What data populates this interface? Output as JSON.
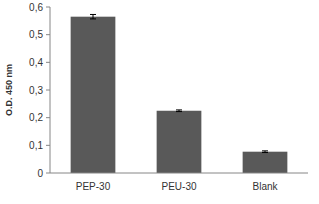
{
  "chart_data": {
    "type": "bar",
    "y_label": "O.D. 450 nm",
    "categories": [
      "PEP-30",
      "PEU-30",
      "Blank"
    ],
    "values": [
      0.565,
      0.225,
      0.077
    ],
    "errors": [
      0.008,
      0.003,
      0.003
    ],
    "color": "#595959",
    "ylim": [
      0,
      0.6
    ],
    "yticks": [
      0,
      {
        "value": 0.1,
        "label": "0,1"
      },
      {
        "value": 0.2,
        "label": "0,2"
      },
      {
        "value": 0.3,
        "label": "0,3"
      },
      {
        "value": 0.4,
        "label": "0,4"
      },
      {
        "value": 0.5,
        "label": "0,5"
      },
      {
        "value": 0.6,
        "label": "0,6"
      }
    ],
    "grid": false
  }
}
